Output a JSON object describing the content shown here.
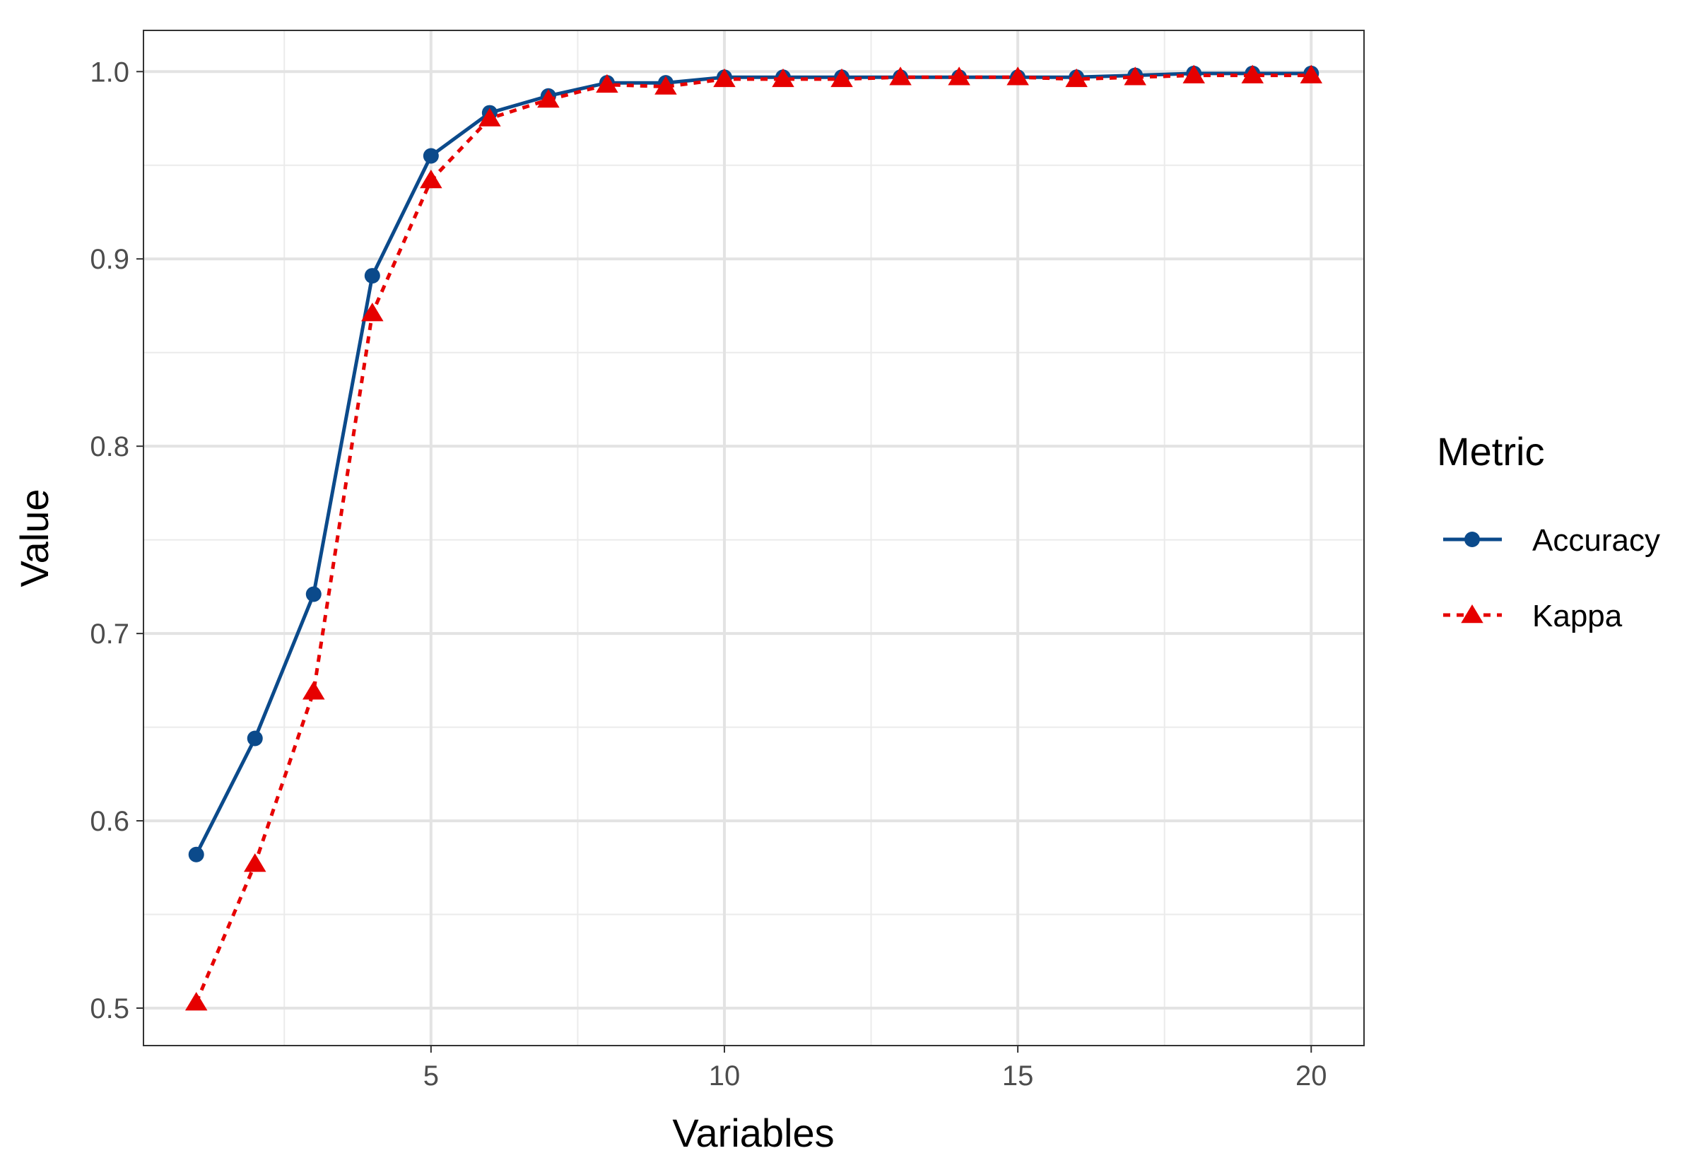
{
  "chart_data": {
    "type": "line",
    "title": "",
    "xlabel": "Variables",
    "ylabel": "Value",
    "x": [
      1,
      2,
      3,
      4,
      5,
      6,
      7,
      8,
      9,
      10,
      11,
      12,
      13,
      14,
      15,
      16,
      17,
      18,
      19,
      20
    ],
    "xlim": [
      0.1,
      20.9
    ],
    "ylim": [
      0.48,
      1.022
    ],
    "x_ticks": [
      5,
      10,
      15,
      20
    ],
    "x_tick_labels": [
      "5",
      "10",
      "15",
      "20"
    ],
    "y_ticks": [
      0.5,
      0.6,
      0.7,
      0.8,
      0.9,
      1.0
    ],
    "y_tick_labels": [
      "0.5",
      "0.6",
      "0.7",
      "0.8",
      "0.9",
      "1.0"
    ],
    "grid": true,
    "legend": {
      "title": "Metric",
      "position": "right"
    },
    "series": [
      {
        "name": "Accuracy",
        "color": "#0b4a8b",
        "line": "solid",
        "marker": "circle",
        "values": [
          0.582,
          0.644,
          0.721,
          0.891,
          0.955,
          0.978,
          0.987,
          0.994,
          0.994,
          0.997,
          0.997,
          0.997,
          0.997,
          0.997,
          0.997,
          0.997,
          0.998,
          0.999,
          0.999,
          0.999
        ]
      },
      {
        "name": "Kappa",
        "color": "#e60000",
        "line": "dotted",
        "marker": "triangle",
        "values": [
          0.503,
          0.577,
          0.669,
          0.871,
          0.942,
          0.975,
          0.985,
          0.993,
          0.992,
          0.996,
          0.996,
          0.996,
          0.997,
          0.997,
          0.997,
          0.996,
          0.997,
          0.998,
          0.998,
          0.998
        ]
      }
    ]
  }
}
